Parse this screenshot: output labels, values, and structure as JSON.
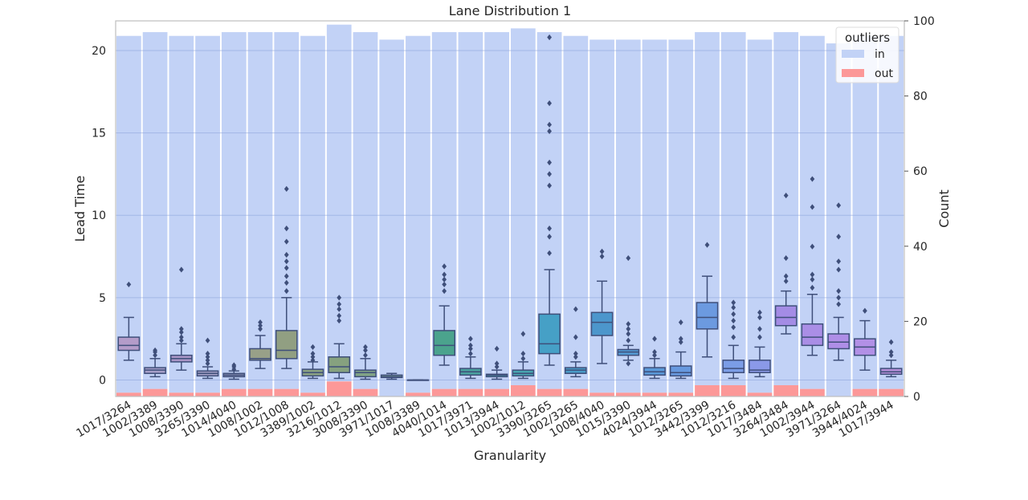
{
  "chart_data": {
    "type": "box",
    "title": "Lane Distribution 1",
    "xlabel": "Granularity",
    "ylabel": "Lead Time",
    "y2label": "Count",
    "ylim": [
      -1,
      21.8
    ],
    "y2lim": [
      0,
      100
    ],
    "yticks": [
      0,
      5,
      10,
      15,
      20
    ],
    "y2ticks": [
      0,
      20,
      40,
      60,
      80,
      100
    ],
    "grid": true,
    "legend": {
      "title": "outliers",
      "position": "top-right",
      "entries": [
        {
          "label": "in",
          "color": "#c2d2f6"
        },
        {
          "label": "out",
          "color": "#fc9898"
        }
      ]
    },
    "categories": [
      "1017/3264",
      "1002/3389",
      "1008/3390",
      "3265/3390",
      "1014/4040",
      "1008/1002",
      "1012/1008",
      "3389/1002",
      "3216/1012",
      "3008/3390",
      "3971/1017",
      "1008/3389",
      "4040/1014",
      "1017/3971",
      "1013/3944",
      "1002/1012",
      "3390/3265",
      "1002/3265",
      "1008/4040",
      "1015/3390",
      "4024/3944",
      "1012/3265",
      "3442/3399",
      "1012/3216",
      "1017/3484",
      "3264/3484",
      "1002/3944",
      "3971/3264",
      "3944/4024",
      "1017/3944"
    ],
    "boxes": [
      {
        "q1": 1.8,
        "median": 2.1,
        "q3": 2.6,
        "whislo": 1.2,
        "whishi": 3.8,
        "fliers": [
          5.8
        ],
        "color": "#b49cc9"
      },
      {
        "q1": 0.4,
        "median": 0.6,
        "q3": 0.75,
        "whislo": 0.2,
        "whishi": 1.3,
        "fliers": [
          1.5,
          1.7,
          1.8
        ],
        "color": "#a59ec8"
      },
      {
        "q1": 1.1,
        "median": 1.3,
        "q3": 1.5,
        "whislo": 0.6,
        "whishi": 2.2,
        "fliers": [
          2.4,
          2.6,
          2.9,
          3.1,
          6.7
        ],
        "color": "#a995c6"
      },
      {
        "q1": 0.25,
        "median": 0.4,
        "q3": 0.55,
        "whislo": 0.1,
        "whishi": 0.8,
        "fliers": [
          1.0,
          1.2,
          1.4,
          1.6,
          2.4
        ],
        "color": "#9f9cc3"
      },
      {
        "q1": 0.2,
        "median": 0.3,
        "q3": 0.4,
        "whislo": 0.05,
        "whishi": 0.55,
        "fliers": [
          0.65,
          0.8,
          0.9
        ],
        "color": "#9c9fc3"
      },
      {
        "q1": 1.2,
        "median": 1.3,
        "q3": 1.9,
        "whislo": 0.7,
        "whishi": 2.7,
        "fliers": [
          3.1,
          3.3,
          3.5
        ],
        "color": "#98a088"
      },
      {
        "q1": 1.3,
        "median": 1.8,
        "q3": 3.0,
        "whislo": 0.7,
        "whishi": 5.0,
        "fliers": [
          5.4,
          5.9,
          6.3,
          6.8,
          7.2,
          7.6,
          8.4,
          9.2,
          11.6
        ],
        "color": "#919f82"
      },
      {
        "q1": 0.25,
        "median": 0.45,
        "q3": 0.65,
        "whislo": 0.1,
        "whishi": 1.1,
        "fliers": [
          1.2,
          1.4,
          1.6,
          2.0
        ],
        "color": "#8aa183"
      },
      {
        "q1": 0.45,
        "median": 0.8,
        "q3": 1.4,
        "whislo": 0.1,
        "whishi": 2.2,
        "fliers": [
          3.6,
          3.9,
          4.3,
          4.6,
          5.0
        ],
        "color": "#86a17f"
      },
      {
        "q1": 0.2,
        "median": 0.45,
        "q3": 0.6,
        "whislo": 0.05,
        "whishi": 1.3,
        "fliers": [
          1.5,
          1.8,
          2.0
        ],
        "color": "#80a386"
      },
      {
        "q1": 0.15,
        "median": 0.2,
        "q3": 0.3,
        "whislo": 0.05,
        "whishi": 0.4,
        "fliers": [],
        "color": "#7ba58d"
      },
      {
        "q1": 0.0,
        "median": 0.0,
        "q3": 0.0,
        "whislo": 0.0,
        "whishi": 0.0,
        "fliers": [],
        "color": "#6fa596"
      },
      {
        "q1": 1.5,
        "median": 2.1,
        "q3": 3.0,
        "whislo": 0.9,
        "whishi": 4.5,
        "fliers": [
          5.4,
          5.8,
          6.1,
          6.4,
          6.9
        ],
        "color": "#4ba38d"
      },
      {
        "q1": 0.3,
        "median": 0.5,
        "q3": 0.7,
        "whislo": 0.1,
        "whishi": 1.4,
        "fliers": [
          1.6,
          1.9,
          2.1,
          2.5
        ],
        "color": "#4aa19f"
      },
      {
        "q1": 0.2,
        "median": 0.3,
        "q3": 0.35,
        "whislo": 0.05,
        "whishi": 0.6,
        "fliers": [
          0.8,
          1.0,
          1.9
        ],
        "color": "#4aa2a8"
      },
      {
        "q1": 0.25,
        "median": 0.4,
        "q3": 0.6,
        "whislo": 0.1,
        "whishi": 1.1,
        "fliers": [
          1.3,
          1.6,
          2.8
        ],
        "color": "#48a5b0"
      },
      {
        "q1": 1.6,
        "median": 2.2,
        "q3": 4.0,
        "whislo": 0.9,
        "whishi": 6.7,
        "fliers": [
          7.7,
          8.7,
          9.2,
          11.8,
          12.5,
          13.2,
          15.1,
          15.5,
          16.8,
          20.8
        ],
        "color": "#46a0c6"
      },
      {
        "q1": 0.4,
        "median": 0.6,
        "q3": 0.75,
        "whislo": 0.2,
        "whishi": 1.1,
        "fliers": [
          1.4,
          1.6,
          2.6,
          4.3
        ],
        "color": "#4a9bc7"
      },
      {
        "q1": 2.7,
        "median": 3.5,
        "q3": 4.1,
        "whislo": 1.0,
        "whishi": 6.0,
        "fliers": [
          7.5,
          7.8
        ],
        "color": "#4c96cc"
      },
      {
        "q1": 1.5,
        "median": 1.7,
        "q3": 1.85,
        "whislo": 1.2,
        "whishi": 2.1,
        "fliers": [
          1.0,
          2.4,
          2.8,
          3.1,
          3.4,
          7.4
        ],
        "color": "#549ad4"
      },
      {
        "q1": 0.3,
        "median": 0.5,
        "q3": 0.75,
        "whislo": 0.1,
        "whishi": 1.3,
        "fliers": [
          1.5,
          1.7,
          2.5
        ],
        "color": "#5b9ad9"
      },
      {
        "q1": 0.25,
        "median": 0.45,
        "q3": 0.85,
        "whislo": 0.1,
        "whishi": 1.7,
        "fliers": [
          2.3,
          2.5,
          3.5
        ],
        "color": "#6799df"
      },
      {
        "q1": 3.1,
        "median": 3.8,
        "q3": 4.7,
        "whislo": 1.4,
        "whishi": 6.3,
        "fliers": [
          8.2
        ],
        "color": "#6c9ae0"
      },
      {
        "q1": 0.45,
        "median": 0.7,
        "q3": 1.2,
        "whislo": 0.1,
        "whishi": 2.1,
        "fliers": [
          2.6,
          3.2,
          3.6,
          4.0,
          4.4,
          4.7
        ],
        "color": "#7b9de6"
      },
      {
        "q1": 0.45,
        "median": 0.6,
        "q3": 1.2,
        "whislo": 0.2,
        "whishi": 2.0,
        "fliers": [
          2.6,
          3.1,
          3.8,
          4.1
        ],
        "color": "#8a99e8"
      },
      {
        "q1": 3.3,
        "median": 3.8,
        "q3": 4.5,
        "whislo": 2.8,
        "whishi": 5.4,
        "fliers": [
          6.0,
          6.3,
          7.4,
          11.2
        ],
        "color": "#a48ce5"
      },
      {
        "q1": 2.1,
        "median": 2.6,
        "q3": 3.4,
        "whislo": 1.5,
        "whishi": 5.2,
        "fliers": [
          5.6,
          6.1,
          6.4,
          8.1,
          10.5,
          12.2
        ],
        "color": "#aa8ee6"
      },
      {
        "q1": 1.9,
        "median": 2.3,
        "q3": 2.8,
        "whislo": 1.2,
        "whishi": 3.8,
        "fliers": [
          4.6,
          5.0,
          5.4,
          6.7,
          7.2,
          8.7,
          10.6
        ],
        "color": "#af8ee7"
      },
      {
        "q1": 1.5,
        "median": 2.0,
        "q3": 2.5,
        "whislo": 0.6,
        "whishi": 3.6,
        "fliers": [
          4.2
        ],
        "color": "#b290e6"
      },
      {
        "q1": 0.35,
        "median": 0.5,
        "q3": 0.7,
        "whislo": 0.2,
        "whishi": 1.2,
        "fliers": [
          1.5,
          1.7,
          2.3
        ],
        "color": "#b58fd8"
      }
    ],
    "count_in": [
      95,
      95,
      95,
      95,
      95,
      95,
      95,
      95,
      95,
      95,
      95,
      95,
      95,
      95,
      95,
      95,
      95,
      94,
      94,
      94,
      94,
      94,
      94,
      94,
      94,
      94,
      94,
      94,
      94,
      94
    ],
    "count_out": [
      1,
      2,
      1,
      1,
      2,
      2,
      2,
      1,
      4,
      2,
      0,
      1,
      2,
      2,
      2,
      3,
      2,
      2,
      1,
      1,
      1,
      1,
      3,
      3,
      1,
      3,
      2,
      0,
      2,
      2
    ]
  }
}
